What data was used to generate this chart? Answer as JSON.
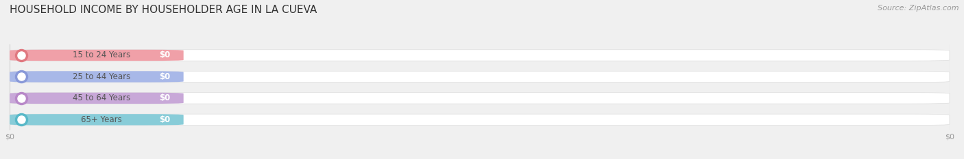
{
  "title": "HOUSEHOLD INCOME BY HOUSEHOLDER AGE IN LA CUEVA",
  "source": "Source: ZipAtlas.com",
  "categories": [
    "15 to 24 Years",
    "25 to 44 Years",
    "45 to 64 Years",
    "65+ Years"
  ],
  "values": [
    0,
    0,
    0,
    0
  ],
  "bar_colors": [
    "#f0a0a8",
    "#a8b8e8",
    "#c8a8d8",
    "#88ccd8"
  ],
  "dot_colors": [
    "#e07880",
    "#8898d8",
    "#b888c8",
    "#58b8c8"
  ],
  "background_color": "#f0f0f0",
  "fig_background": "#f0f0f0",
  "bar_height": 0.52,
  "figsize": [
    14.06,
    2.33
  ],
  "dpi": 100,
  "title_fontsize": 11,
  "source_fontsize": 8,
  "label_fontsize": 8.5,
  "value_fontsize": 8.5
}
